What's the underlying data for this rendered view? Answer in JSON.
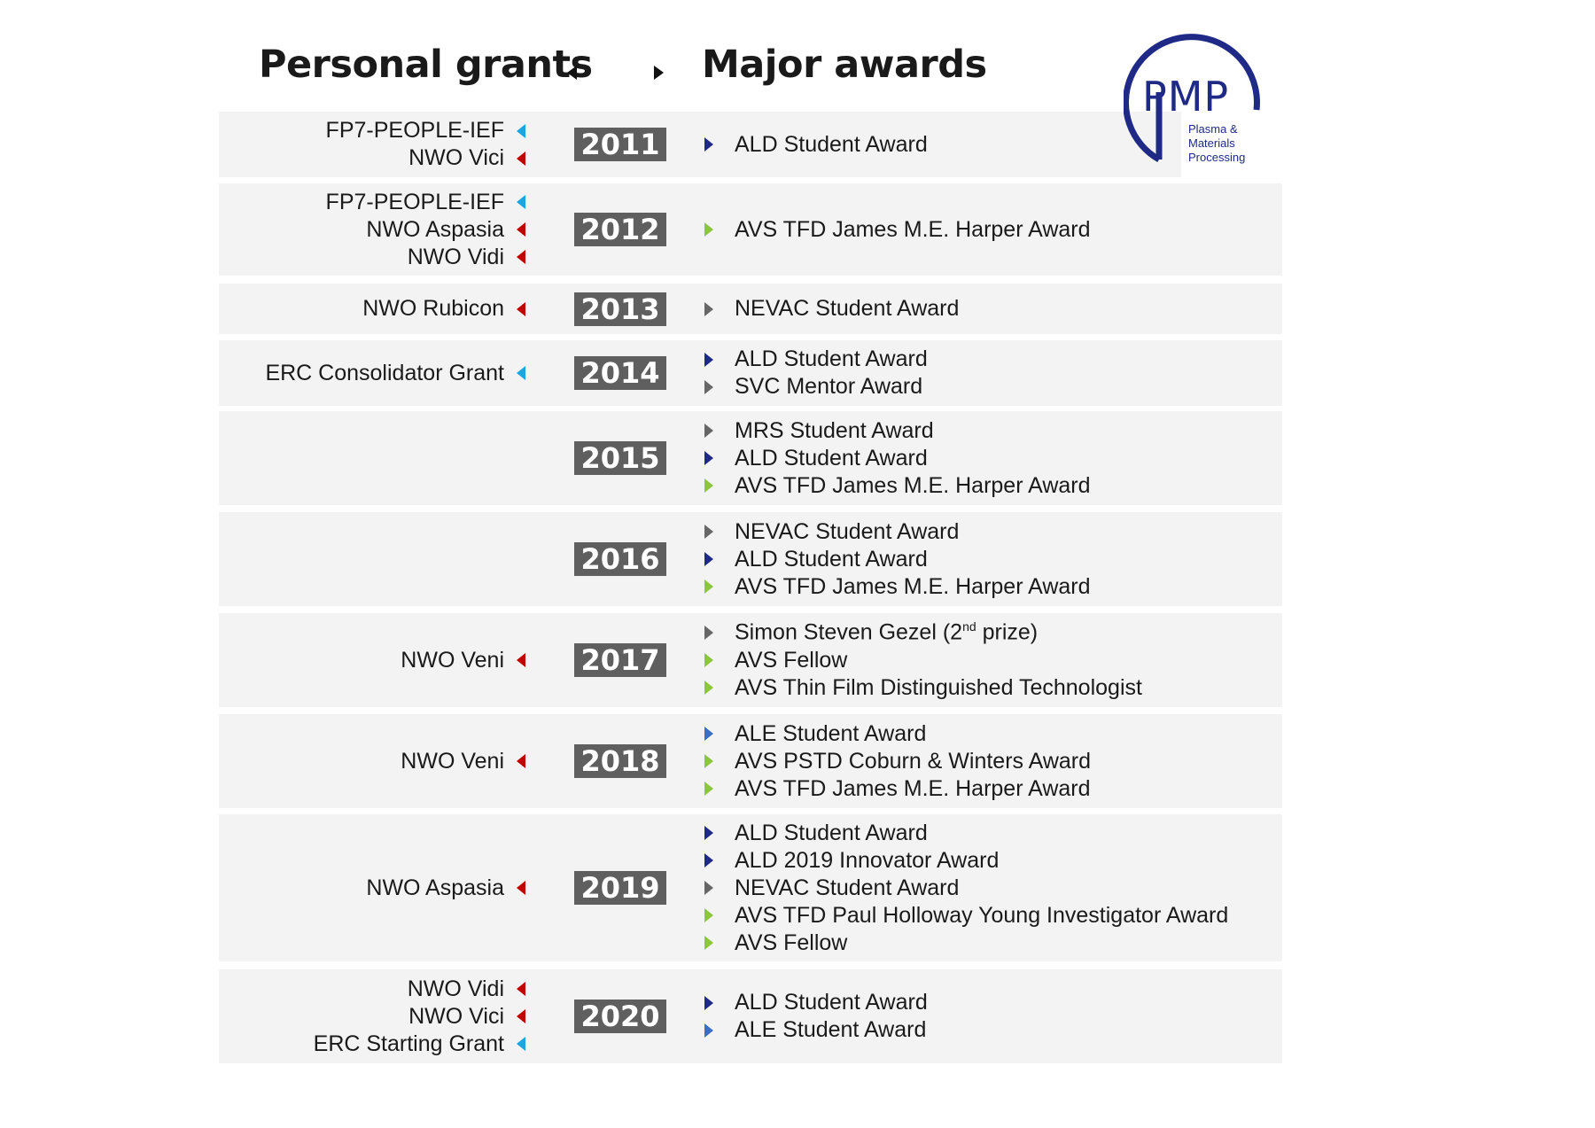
{
  "headings": {
    "grants": "Personal grants",
    "awards": "Major awards"
  },
  "logo": {
    "name": "PMP",
    "subtitle_lines": [
      "Plasma &",
      "Materials",
      "Processing"
    ],
    "color": "#1e2a86"
  },
  "grant_colors": {
    "red": "#c00000",
    "blue": "#1ca6df"
  },
  "award_colors": {
    "navy": "#1e2a86",
    "blue": "#3a6fc4",
    "grey": "#666666",
    "green": "#8cc63f"
  },
  "years": [
    {
      "year": "2011",
      "grants": [
        {
          "label": "FP7-PEOPLE-IEF",
          "color": "#1ca6df"
        },
        {
          "label": "NWO Vici",
          "color": "#c00000"
        }
      ],
      "awards": [
        {
          "label": "ALD Student Award",
          "color": "#1e2a86"
        }
      ]
    },
    {
      "year": "2012",
      "grants": [
        {
          "label": "FP7-PEOPLE-IEF",
          "color": "#1ca6df"
        },
        {
          "label": "NWO Aspasia",
          "color": "#c00000"
        },
        {
          "label": "NWO Vidi",
          "color": "#c00000"
        }
      ],
      "awards": [
        {
          "label": "AVS TFD James M.E. Harper Award",
          "color": "#8cc63f"
        }
      ]
    },
    {
      "year": "2013",
      "grants": [
        {
          "label": "NWO Rubicon",
          "color": "#c00000"
        }
      ],
      "awards": [
        {
          "label": "NEVAC Student Award",
          "color": "#666666"
        }
      ]
    },
    {
      "year": "2014",
      "grants": [
        {
          "label": "ERC Consolidator Grant",
          "color": "#1ca6df"
        }
      ],
      "awards": [
        {
          "label": "ALD Student Award",
          "color": "#1e2a86"
        },
        {
          "label": "SVC Mentor Award",
          "color": "#666666"
        }
      ]
    },
    {
      "year": "2015",
      "grants": [],
      "awards": [
        {
          "label": "MRS Student Award",
          "color": "#666666"
        },
        {
          "label": "ALD Student Award",
          "color": "#1e2a86"
        },
        {
          "label": "AVS TFD James M.E. Harper Award",
          "color": "#8cc63f"
        }
      ]
    },
    {
      "year": "2016",
      "grants": [],
      "awards": [
        {
          "label": "NEVAC Student Award",
          "color": "#666666"
        },
        {
          "label": "ALD Student Award",
          "color": "#1e2a86"
        },
        {
          "label": "AVS TFD James M.E. Harper Award",
          "color": "#8cc63f"
        }
      ]
    },
    {
      "year": "2017",
      "grants": [
        {
          "label": "NWO Veni",
          "color": "#c00000"
        }
      ],
      "awards": [
        {
          "label": "Simon Steven Gezel (2",
          "sup": "nd",
          "suffix": " prize)",
          "color": "#666666"
        },
        {
          "label": "AVS Fellow",
          "color": "#8cc63f"
        },
        {
          "label": "AVS Thin Film Distinguished Technologist",
          "color": "#8cc63f"
        }
      ]
    },
    {
      "year": "2018",
      "grants": [
        {
          "label": "NWO Veni",
          "color": "#c00000"
        }
      ],
      "awards": [
        {
          "label": "ALE Student Award",
          "color": "#3a6fc4"
        },
        {
          "label": "AVS PSTD Coburn & Winters Award",
          "color": "#8cc63f"
        },
        {
          "label": "AVS TFD James M.E. Harper Award",
          "color": "#8cc63f"
        }
      ]
    },
    {
      "year": "2019",
      "grants": [
        {
          "label": "NWO Aspasia",
          "color": "#c00000"
        }
      ],
      "awards": [
        {
          "label": "ALD Student Award",
          "color": "#1e2a86"
        },
        {
          "label": "ALD 2019 Innovator Award",
          "color": "#1e2a86"
        },
        {
          "label": "NEVAC Student Award",
          "color": "#666666"
        },
        {
          "label": "AVS TFD Paul Holloway Young Investigator Award",
          "color": "#8cc63f"
        },
        {
          "label": "AVS Fellow",
          "color": "#8cc63f"
        }
      ]
    },
    {
      "year": "2020",
      "grants": [
        {
          "label": "NWO Vidi",
          "color": "#c00000"
        },
        {
          "label": "NWO Vici",
          "color": "#c00000"
        },
        {
          "label": "ERC Starting Grant",
          "color": "#1ca6df"
        }
      ],
      "awards": [
        {
          "label": "ALD Student Award",
          "color": "#1e2a86"
        },
        {
          "label": "ALE Student Award",
          "color": "#3a6fc4"
        }
      ]
    }
  ]
}
